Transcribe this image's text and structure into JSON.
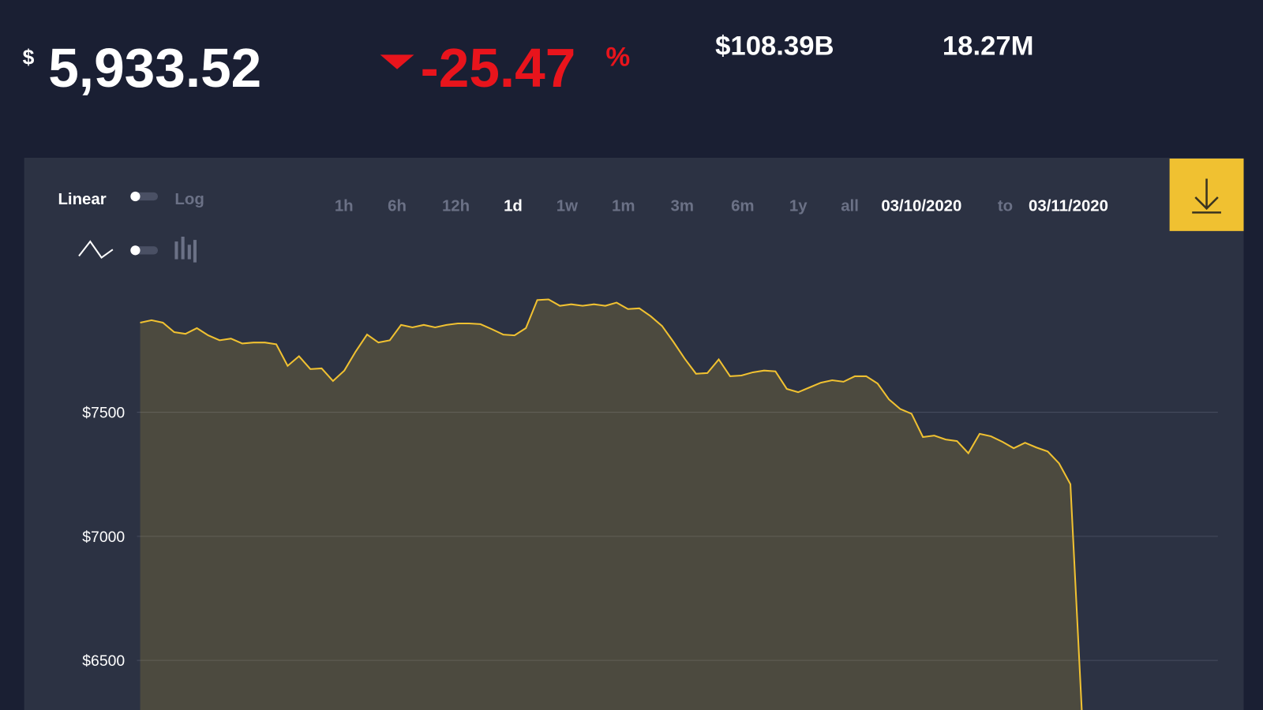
{
  "header": {
    "currency": "$",
    "price": "5,933.52",
    "change": "-25.47",
    "change_unit": "%",
    "market_cap": "$108.39B",
    "volume": "18.27M"
  },
  "controls": {
    "scale_linear": "Linear",
    "scale_log": "Log",
    "ranges": [
      "1h",
      "6h",
      "12h",
      "1d",
      "1w",
      "1m",
      "3m",
      "6m",
      "1y",
      "all"
    ],
    "date_from": "03/10/2020",
    "date_sep": "to",
    "date_to": "03/11/2020"
  },
  "chart_data": {
    "type": "area",
    "color": "#f0c131",
    "values": [
      7861,
      7871,
      7861,
      7823,
      7816,
      7839,
      7810,
      7790,
      7797,
      7777,
      7781,
      7781,
      7774,
      7687,
      7726,
      7674,
      7677,
      7626,
      7668,
      7745,
      7813,
      7781,
      7790,
      7852,
      7842,
      7852,
      7842,
      7852,
      7858,
      7858,
      7855,
      7835,
      7813,
      7810,
      7839,
      7952,
      7955,
      7929,
      7935,
      7929,
      7935,
      7929,
      7942,
      7916,
      7919,
      7887,
      7848,
      7784,
      7716,
      7655,
      7658,
      7713,
      7645,
      7648,
      7661,
      7668,
      7665,
      7594,
      7581,
      7600,
      7619,
      7629,
      7623,
      7645,
      7645,
      7616,
      7552,
      7513,
      7494,
      7400,
      7406,
      7390,
      7384,
      7335,
      7413,
      7403,
      7381,
      7355,
      7377,
      7358,
      7342,
      7294,
      7210,
      6300
    ],
    "ylim": [
      6300,
      8000
    ],
    "yticks": [
      {
        "value": 6500,
        "label": "$6500"
      },
      {
        "value": 7000,
        "label": "$7000"
      },
      {
        "value": 7500,
        "label": "$7500"
      }
    ],
    "grid": true
  }
}
